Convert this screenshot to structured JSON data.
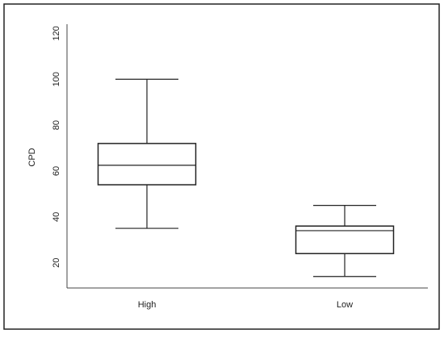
{
  "chart_data": {
    "type": "box",
    "y_label": "CPD",
    "categories": [
      "High",
      "Low"
    ],
    "boxes": [
      {
        "min": 35,
        "q1": 54,
        "median": 62.5,
        "q3": 72,
        "max": 100
      },
      {
        "min": 14,
        "q1": 24,
        "median": 34,
        "q3": 36,
        "max": 45
      }
    ],
    "color": "#222222",
    "ylim": [
      9,
      124
    ],
    "yticks": [
      20,
      40,
      60,
      80,
      100,
      120
    ],
    "grid": false
  }
}
